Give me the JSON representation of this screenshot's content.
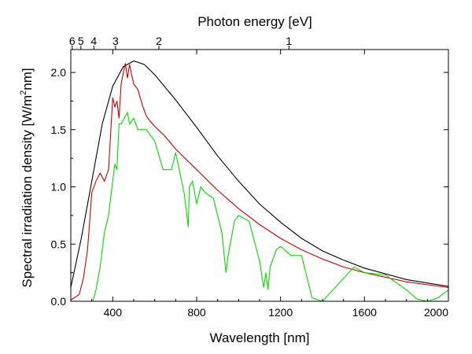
{
  "chart_data": {
    "type": "line",
    "title": "",
    "xlabel": "Wavelength [nm]",
    "ylabel": "Spectral irradiation density [W/m²nm]",
    "ylabel_parts": {
      "before": "Spectral irradiation density [W/m",
      "sup": "2",
      "after": "nm]"
    },
    "top_axis_label": "Photon energy [eV]",
    "xlim": [
      200,
      2000
    ],
    "ylim": [
      0,
      2.2
    ],
    "x_ticks": [
      400,
      800,
      1200,
      1600,
      2000
    ],
    "x_tick_labels": [
      "400",
      "800",
      "1200",
      "1600",
      "2000"
    ],
    "y_ticks": [
      0,
      0.5,
      1.0,
      1.5,
      2.0
    ],
    "y_tick_labels": [
      "0.0",
      "0.5",
      "1.0",
      "1.5",
      "2.0"
    ],
    "top_ticks": [
      {
        "ev": 6,
        "label": "6"
      },
      {
        "ev": 5,
        "label": "5"
      },
      {
        "ev": 4,
        "label": "4"
      },
      {
        "ev": 3,
        "label": "3"
      },
      {
        "ev": 2,
        "label": "2"
      },
      {
        "ev": 1,
        "label": "1"
      }
    ],
    "grid": false,
    "series": [
      {
        "color": "#000000",
        "x": [
          200,
          250,
          300,
          350,
          400,
          450,
          500,
          550,
          600,
          700,
          800,
          900,
          1000,
          1100,
          1200,
          1300,
          1400,
          1500,
          1600,
          1800,
          2000
        ],
        "y": [
          0.12,
          0.55,
          1.05,
          1.55,
          1.88,
          2.05,
          2.1,
          2.07,
          1.98,
          1.76,
          1.52,
          1.27,
          1.05,
          0.85,
          0.69,
          0.55,
          0.44,
          0.36,
          0.29,
          0.19,
          0.13
        ]
      },
      {
        "color": "#cc0000",
        "x": [
          200,
          240,
          260,
          280,
          300,
          320,
          340,
          360,
          380,
          400,
          410,
          420,
          430,
          440,
          460,
          470,
          480,
          490,
          500,
          520,
          540,
          560,
          580,
          600,
          650,
          700,
          800,
          900,
          1000,
          1100,
          1200,
          1300,
          1400,
          1500,
          1600,
          1800,
          2000
        ],
        "y": [
          0.01,
          0.06,
          0.2,
          0.45,
          0.95,
          1.05,
          1.12,
          1.05,
          1.15,
          1.78,
          1.7,
          1.75,
          1.6,
          1.9,
          2.08,
          1.95,
          2.07,
          1.98,
          1.9,
          1.85,
          1.72,
          1.62,
          1.57,
          1.53,
          1.44,
          1.33,
          1.15,
          0.97,
          0.81,
          0.67,
          0.55,
          0.45,
          0.37,
          0.3,
          0.25,
          0.17,
          0.12
        ]
      },
      {
        "color": "#00dd00",
        "x": [
          200,
          305,
          320,
          340,
          360,
          380,
          400,
          410,
          420,
          430,
          440,
          455,
          470,
          480,
          500,
          520,
          560,
          580,
          600,
          640,
          680,
          700,
          740,
          760,
          765,
          780,
          800,
          820,
          840,
          880,
          920,
          940,
          950,
          980,
          1000,
          1050,
          1100,
          1120,
          1130,
          1140,
          1150,
          1180,
          1200,
          1250,
          1300,
          1350,
          1400,
          1450,
          1500,
          1550,
          1600,
          1700,
          1800,
          1850,
          1900,
          1950,
          2000
        ],
        "y": [
          0.0,
          0.0,
          0.1,
          0.3,
          0.6,
          0.75,
          1.05,
          1.2,
          1.15,
          1.55,
          1.55,
          1.6,
          1.65,
          1.55,
          1.6,
          1.5,
          1.5,
          1.45,
          1.4,
          1.15,
          1.15,
          1.3,
          0.95,
          0.65,
          1.0,
          1.05,
          0.85,
          1.0,
          0.95,
          0.9,
          0.6,
          0.25,
          0.4,
          0.7,
          0.75,
          0.7,
          0.35,
          0.12,
          0.25,
          0.1,
          0.3,
          0.45,
          0.48,
          0.4,
          0.4,
          0.03,
          0.0,
          0.1,
          0.2,
          0.3,
          0.25,
          0.23,
          0.1,
          0.02,
          0.0,
          0.03,
          0.1
        ]
      }
    ]
  }
}
